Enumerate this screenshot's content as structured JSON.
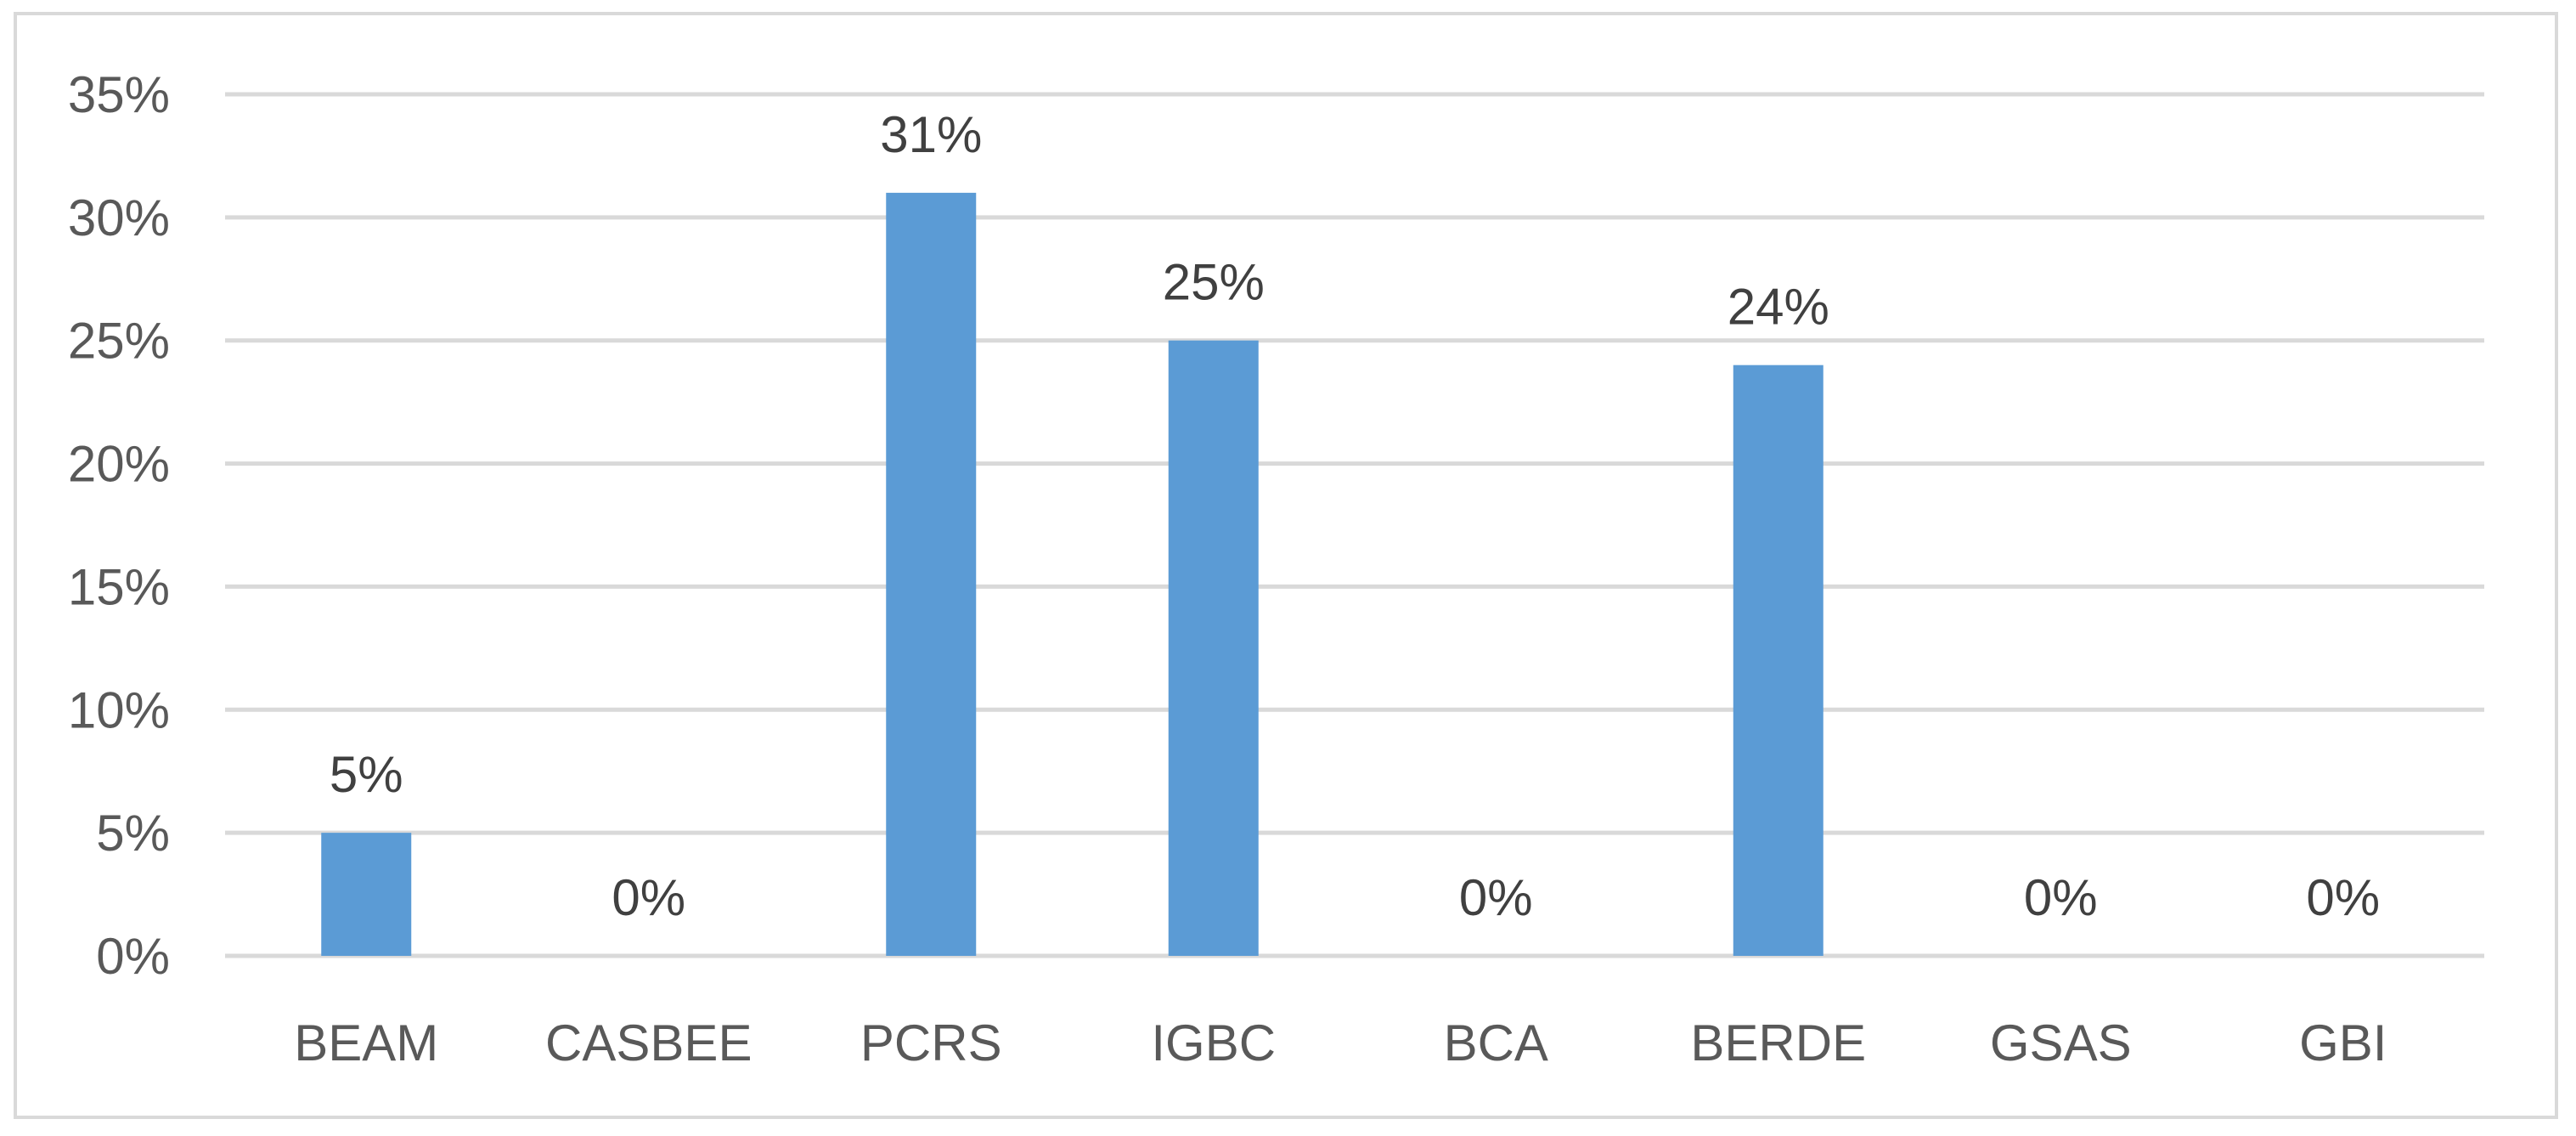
{
  "chart_data": {
    "type": "bar",
    "categories": [
      "BEAM",
      "CASBEE",
      "PCRS",
      "IGBC",
      "BCA",
      "BERDE",
      "GSAS",
      "GBI"
    ],
    "values": [
      5,
      0,
      31,
      25,
      0,
      24,
      0,
      0
    ],
    "data_labels": [
      "5%",
      "0%",
      "31%",
      "25%",
      "0%",
      "24%",
      "0%",
      "0%"
    ],
    "y_ticks": [
      "0%",
      "5%",
      "10%",
      "15%",
      "20%",
      "25%",
      "30%",
      "35%"
    ],
    "ylim": [
      0,
      35
    ],
    "title": "",
    "xlabel": "",
    "ylabel": "",
    "grid": true,
    "bar_color": "#5b9bd5",
    "gridline_color": "#d9d9d9",
    "text_color": "#595959"
  }
}
